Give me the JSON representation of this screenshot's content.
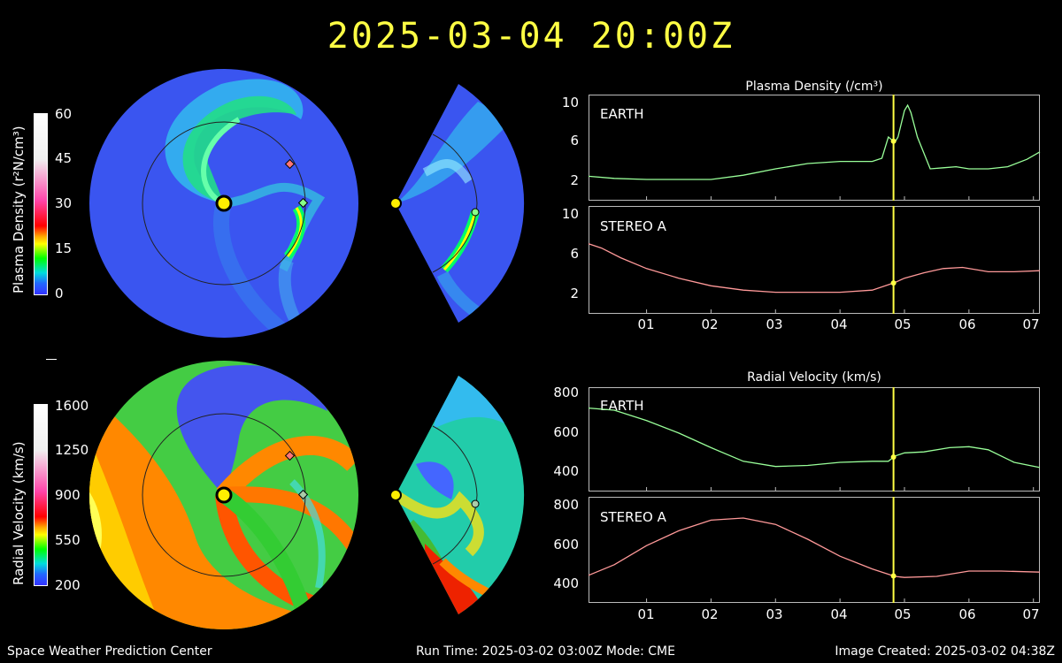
{
  "timestamp": "2025-03-04  20:00Z",
  "colors": {
    "earth_line": "#99ff99",
    "stereo_line": "#ff9999",
    "marker_line": "#ffff44",
    "earth_marker": "#88ff88",
    "stereo_marker": "#ff7777",
    "sun": "#ffee00"
  },
  "density_colorbar": {
    "label": "Plasma Density (r²N/cm³)",
    "ticks": [
      "60",
      "45",
      "30",
      "15",
      "0"
    ]
  },
  "velocity_colorbar": {
    "label": "Radial Velocity (km/s)",
    "ticks": [
      "1600",
      "1250",
      "900",
      "550",
      "200"
    ]
  },
  "density_panel": {
    "title": "Plasma Density (/cm³)",
    "earth": {
      "name": "EARTH",
      "yticks": [
        "10",
        "6",
        "2"
      ]
    },
    "stereo": {
      "name": "STEREO A",
      "yticks": [
        "10",
        "6",
        "2"
      ]
    }
  },
  "velocity_panel": {
    "title": "Radial Velocity (km/s)",
    "earth": {
      "name": "EARTH",
      "yticks": [
        "800",
        "600",
        "400"
      ]
    },
    "stereo": {
      "name": "STEREO A",
      "yticks": [
        "800",
        "600",
        "400"
      ]
    }
  },
  "xticks": [
    "01",
    "02",
    "03",
    "04",
    "05",
    "06",
    "07"
  ],
  "current_time_day": 4.83,
  "footer": {
    "left": "Space Weather Prediction Center",
    "center": "Run Time: 2025-03-02 03:00Z  Mode: CME",
    "right": "Image Created: 2025-03-02 04:38Z"
  },
  "chart_data": [
    {
      "type": "line",
      "title": "Plasma Density (/cm³)",
      "series": [
        {
          "name": "EARTH",
          "x": [
            0.1,
            0.5,
            1.0,
            1.5,
            2.0,
            2.5,
            3.0,
            3.5,
            4.0,
            4.5,
            4.65,
            4.75,
            4.85,
            4.9,
            5.0,
            5.05,
            5.1,
            5.2,
            5.4,
            5.6,
            5.8,
            6.0,
            6.3,
            6.6,
            6.9,
            7.1
          ],
          "y": [
            2.3,
            2.1,
            2.0,
            2.0,
            2.0,
            2.4,
            3.0,
            3.5,
            3.7,
            3.7,
            4.0,
            6.0,
            5.5,
            6.0,
            8.5,
            9.0,
            8.3,
            6.0,
            3.0,
            3.1,
            3.2,
            3.0,
            3.0,
            3.2,
            3.9,
            4.6
          ]
        }
      ],
      "ylim": [
        0,
        10
      ],
      "xlim": [
        0.1,
        7.1
      ]
    },
    {
      "type": "line",
      "title": "Plasma Density (/cm³)",
      "series": [
        {
          "name": "STEREO A",
          "x": [
            0.1,
            0.3,
            0.6,
            1.0,
            1.5,
            2.0,
            2.5,
            3.0,
            3.5,
            4.0,
            4.5,
            4.85,
            5.0,
            5.3,
            5.6,
            5.9,
            6.3,
            6.7,
            7.1
          ],
          "y": [
            6.5,
            6.1,
            5.2,
            4.2,
            3.3,
            2.6,
            2.2,
            2.0,
            2.0,
            2.0,
            2.2,
            2.9,
            3.3,
            3.8,
            4.2,
            4.3,
            3.9,
            3.9,
            4.0
          ]
        }
      ],
      "ylim": [
        0,
        10
      ],
      "xlim": [
        0.1,
        7.1
      ]
    },
    {
      "type": "line",
      "title": "Radial Velocity (km/s)",
      "series": [
        {
          "name": "EARTH",
          "x": [
            0.1,
            0.5,
            1.0,
            1.5,
            2.0,
            2.5,
            3.0,
            3.5,
            4.0,
            4.5,
            4.75,
            4.85,
            5.0,
            5.3,
            5.7,
            6.0,
            6.3,
            6.7,
            7.1
          ],
          "y": [
            700,
            690,
            640,
            580,
            510,
            445,
            420,
            425,
            440,
            445,
            445,
            470,
            485,
            490,
            510,
            515,
            500,
            440,
            415
          ]
        }
      ],
      "ylim": [
        300,
        800
      ],
      "xlim": [
        0.1,
        7.1
      ]
    },
    {
      "type": "line",
      "title": "Radial Velocity (km/s)",
      "series": [
        {
          "name": "STEREO A",
          "x": [
            0.1,
            0.5,
            1.0,
            1.5,
            2.0,
            2.5,
            3.0,
            3.5,
            4.0,
            4.5,
            4.85,
            5.0,
            5.5,
            6.0,
            6.5,
            7.1
          ],
          "y": [
            430,
            480,
            570,
            640,
            690,
            700,
            670,
            600,
            520,
            460,
            425,
            420,
            425,
            450,
            450,
            445
          ]
        }
      ],
      "ylim": [
        300,
        800
      ],
      "xlim": [
        0.1,
        7.1
      ]
    }
  ]
}
